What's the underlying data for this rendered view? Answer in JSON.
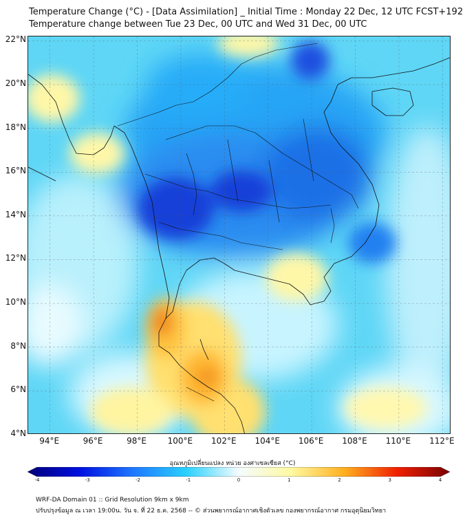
{
  "title": {
    "line1": "Temperature Change (°C) - [Data Assimilation] _ Initial Time : Monday 22 Dec, 12 UTC FCST+192",
    "line2": "Temperature change between Tue 23 Dec, 00 UTC and Wed 31 Dec, 00 UTC"
  },
  "map": {
    "lat_range": [
      4,
      22.2
    ],
    "lon_range": [
      93,
      112.4
    ],
    "y_ticks": [
      {
        "value": 22,
        "label": "22°N"
      },
      {
        "value": 20,
        "label": "20°N"
      },
      {
        "value": 18,
        "label": "18°N"
      },
      {
        "value": 16,
        "label": "16°N"
      },
      {
        "value": 14,
        "label": "14°N"
      },
      {
        "value": 12,
        "label": "12°N"
      },
      {
        "value": 10,
        "label": "10°N"
      },
      {
        "value": 8,
        "label": "8°N"
      },
      {
        "value": 6,
        "label": "6°N"
      },
      {
        "value": 4,
        "label": "4°N"
      }
    ],
    "x_ticks": [
      {
        "value": 94,
        "label": "94°E"
      },
      {
        "value": 96,
        "label": "96°E"
      },
      {
        "value": 98,
        "label": "98°E"
      },
      {
        "value": 100,
        "label": "100°E"
      },
      {
        "value": 102,
        "label": "102°E"
      },
      {
        "value": 104,
        "label": "104°E"
      },
      {
        "value": 106,
        "label": "106°E"
      },
      {
        "value": 108,
        "label": "108°E"
      },
      {
        "value": 110,
        "label": "110°E"
      },
      {
        "value": 112,
        "label": "112°E"
      }
    ],
    "grid": "dashed"
  },
  "colorbar": {
    "title": "อุณหภูมิเปลี่ยนแปลง หน่วย องศาเซลเซียส (°C)",
    "min": -4,
    "max": 4,
    "ticks": [
      {
        "value": -4,
        "label": "-4"
      },
      {
        "value": -3,
        "label": "-3"
      },
      {
        "value": -2,
        "label": "-2"
      },
      {
        "value": -1,
        "label": "-1"
      },
      {
        "value": 0,
        "label": "0"
      },
      {
        "value": 1,
        "label": "1"
      },
      {
        "value": 2,
        "label": "2"
      },
      {
        "value": 3,
        "label": "3"
      },
      {
        "value": 4,
        "label": "4"
      }
    ],
    "colors": [
      "#00007a",
      "#0010e0",
      "#1f78ff",
      "#28d0ff",
      "#f4fcff",
      "#fff9a0",
      "#ffb020",
      "#f02000",
      "#780000"
    ]
  },
  "footer": {
    "line1": "WRF-DA Domain 01 :: Grid Resolution 9km x 9km",
    "line2": "ปรับปรุงข้อมูล ณ เวลา 19:00น. วัน จ. ที่ 22 ธ.ค. 2568 -- © ส่วนพยากรณ์อากาศเชิงตัวเลข กองพยากรณ์อากาศ กรมอุตุนิยมวิทยา"
  }
}
